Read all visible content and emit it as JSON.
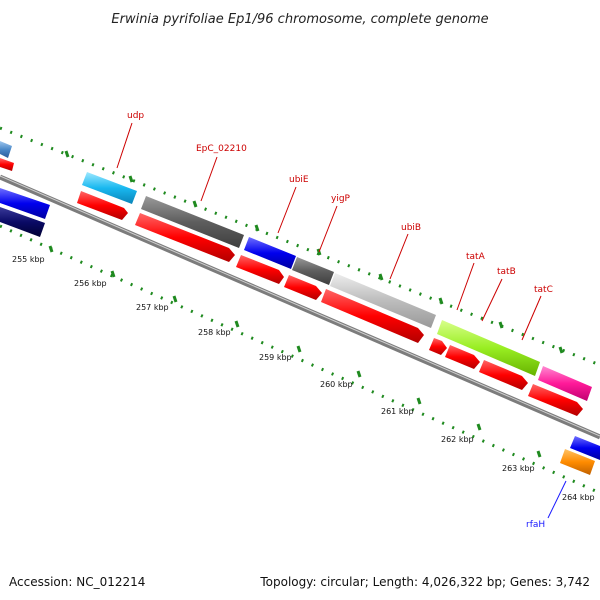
{
  "title": "Erwinia pyrifoliae Ep1/96 chromosome, complete genome",
  "footer": {
    "accession": "Accession: NC_012214",
    "summary": "Topology: circular; Length: 4,026,322 bp; Genes: 3,742"
  },
  "ticks": [
    "255 kbp",
    "256 kbp",
    "257 kbp",
    "258 kbp",
    "259 kbp",
    "260 kbp",
    "261 kbp",
    "262 kbp",
    "263 kbp",
    "264 kbp"
  ],
  "genes": [
    {
      "name": "udp",
      "color": "#cc0000"
    },
    {
      "name": "EpC_02210",
      "color": "#cc0000"
    },
    {
      "name": "ubiE",
      "color": "#cc0000"
    },
    {
      "name": "yigP",
      "color": "#cc0000"
    },
    {
      "name": "ubiB",
      "color": "#cc0000"
    },
    {
      "name": "tatA",
      "color": "#cc0000"
    },
    {
      "name": "tatB",
      "color": "#cc0000"
    },
    {
      "name": "tatC",
      "color": "#cc0000"
    },
    {
      "name": "rfaH",
      "color": "#1a1aff"
    }
  ],
  "colors": {
    "cds": "#ff0000",
    "backbone": "#888888",
    "tick_dots": "#1f8a1f"
  }
}
